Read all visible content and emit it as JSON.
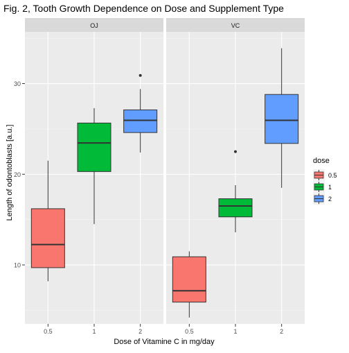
{
  "chart_data": {
    "type": "boxplot",
    "title": "Fig. 2, Tooth Growth Dependence on Dose and Supplement Type",
    "xlabel": "Dose of Vitamine C in mg/day",
    "ylabel": "Length of odontoblasts [a.u.]",
    "ylim": [
      3.5,
      35.7
    ],
    "yticks": [
      10,
      20,
      30
    ],
    "categories": [
      "0.5",
      "1",
      "2"
    ],
    "legend": {
      "title": "dose",
      "position": "right",
      "entries": [
        "0.5",
        "1",
        "2"
      ],
      "colors": [
        "#f8766d",
        "#00ba38",
        "#619cff"
      ]
    },
    "panels": [
      {
        "label": "OJ",
        "boxes": [
          {
            "dose": "0.5",
            "min": 8.2,
            "q1": 9.7,
            "median": 12.25,
            "q3": 16.2,
            "max": 21.5,
            "outliers": []
          },
          {
            "dose": "1",
            "min": 14.5,
            "q1": 20.3,
            "median": 23.45,
            "q3": 25.65,
            "max": 27.3,
            "outliers": []
          },
          {
            "dose": "2",
            "min": 22.4,
            "q1": 24.6,
            "median": 25.95,
            "q3": 27.1,
            "max": 29.4,
            "outliers": [
              30.9
            ]
          }
        ]
      },
      {
        "label": "VC",
        "boxes": [
          {
            "dose": "0.5",
            "min": 4.2,
            "q1": 5.9,
            "median": 7.15,
            "q3": 10.9,
            "max": 11.5,
            "outliers": []
          },
          {
            "dose": "1",
            "min": 13.6,
            "q1": 15.3,
            "median": 16.5,
            "q3": 17.3,
            "max": 18.8,
            "outliers": [
              22.5
            ]
          },
          {
            "dose": "2",
            "min": 18.5,
            "q1": 23.4,
            "median": 25.95,
            "q3": 28.8,
            "max": 33.9,
            "outliers": []
          }
        ]
      }
    ],
    "grid": true,
    "colors": {
      "panel_bg": "#ebebeb",
      "strip_bg": "#d9d9d9",
      "grid_major": "#ffffff",
      "outline": "#333333",
      "text": "#000000",
      "tick_text": "#4d4d4d"
    }
  }
}
